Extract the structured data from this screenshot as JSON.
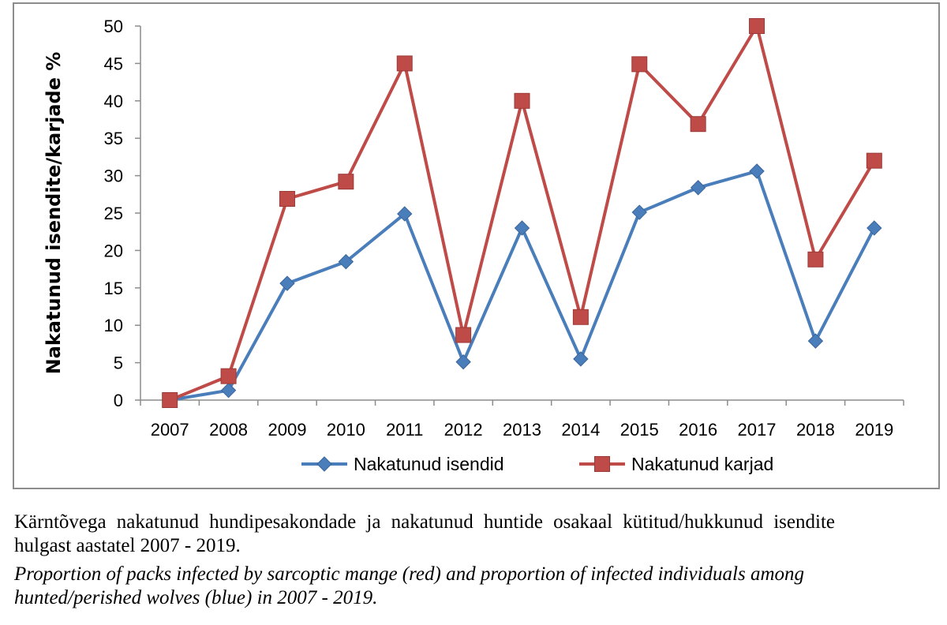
{
  "chart_data": {
    "type": "line",
    "ylabel": "Nakatunud isendite/karjade %",
    "xlabel": "",
    "ylim": [
      0,
      50
    ],
    "y_ticks": [
      0,
      5,
      10,
      15,
      20,
      25,
      30,
      35,
      40,
      45,
      50
    ],
    "categories": [
      "2007",
      "2008",
      "2009",
      "2010",
      "2011",
      "2012",
      "2013",
      "2014",
      "2015",
      "2016",
      "2017",
      "2018",
      "2019"
    ],
    "grid": false,
    "legend_position": "bottom",
    "series": [
      {
        "name": "Nakatunud isendid",
        "color": "#4a7ebb",
        "marker": "diamond",
        "values": [
          0,
          1.3,
          15.6,
          18.5,
          24.9,
          5.1,
          23.0,
          5.5,
          25.1,
          28.4,
          30.6,
          7.9,
          23.0
        ]
      },
      {
        "name": "Nakatunud karjad",
        "color": "#be4b48",
        "marker": "square",
        "values": [
          0,
          3.2,
          26.9,
          29.2,
          45.0,
          8.7,
          40.0,
          11.1,
          44.9,
          36.9,
          50.0,
          18.8,
          32.0
        ]
      }
    ]
  },
  "caption": {
    "estonian": "Kärntõvega nakatunud hundipesakondade ja nakatunud huntide osakaal kütitud/hukkunud isendite hulgast aastatel 2007 - 2019.",
    "english": "Proportion of packs infected by sarcoptic mange (red) and proportion of infected individuals among hunted/perished wolves (blue) in 2007 - 2019."
  }
}
